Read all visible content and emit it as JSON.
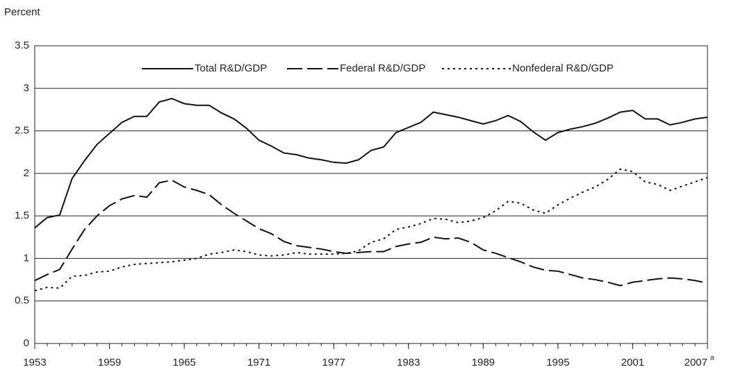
{
  "chart_data": {
    "type": "line",
    "y_axis_label": "Percent",
    "x_tick_note": "a",
    "x": [
      1953,
      1954,
      1955,
      1956,
      1957,
      1958,
      1959,
      1960,
      1961,
      1962,
      1963,
      1964,
      1965,
      1966,
      1967,
      1968,
      1969,
      1970,
      1971,
      1972,
      1973,
      1974,
      1975,
      1976,
      1977,
      1978,
      1979,
      1980,
      1981,
      1982,
      1983,
      1984,
      1985,
      1986,
      1987,
      1988,
      1989,
      1990,
      1991,
      1992,
      1993,
      1994,
      1995,
      1996,
      1997,
      1998,
      1999,
      2000,
      2001,
      2002,
      2003,
      2004,
      2005,
      2006,
      2007
    ],
    "series": [
      {
        "name": "Total R&D/GDP",
        "color": "#111111",
        "style": "solid",
        "values": [
          1.36,
          1.48,
          1.51,
          1.94,
          2.15,
          2.34,
          2.47,
          2.6,
          2.67,
          2.67,
          2.84,
          2.88,
          2.82,
          2.8,
          2.8,
          2.71,
          2.64,
          2.53,
          2.39,
          2.32,
          2.24,
          2.22,
          2.18,
          2.16,
          2.13,
          2.12,
          2.16,
          2.27,
          2.31,
          2.48,
          2.54,
          2.6,
          2.72,
          2.69,
          2.66,
          2.62,
          2.58,
          2.62,
          2.68,
          2.61,
          2.49,
          2.39,
          2.48,
          2.52,
          2.55,
          2.59,
          2.65,
          2.72,
          2.74,
          2.64,
          2.64,
          2.57,
          2.6,
          2.64,
          2.66
        ]
      },
      {
        "name": "Federal R&D/GDP",
        "color": "#111111",
        "style": "dashed",
        "values": [
          0.74,
          0.81,
          0.87,
          1.11,
          1.34,
          1.5,
          1.62,
          1.7,
          1.74,
          1.72,
          1.89,
          1.92,
          1.84,
          1.8,
          1.75,
          1.63,
          1.53,
          1.44,
          1.35,
          1.29,
          1.2,
          1.15,
          1.13,
          1.11,
          1.08,
          1.06,
          1.07,
          1.08,
          1.08,
          1.14,
          1.17,
          1.19,
          1.25,
          1.23,
          1.24,
          1.19,
          1.1,
          1.06,
          1.01,
          0.96,
          0.9,
          0.86,
          0.85,
          0.81,
          0.77,
          0.75,
          0.72,
          0.68,
          0.72,
          0.74,
          0.76,
          0.77,
          0.76,
          0.74,
          0.71
        ]
      },
      {
        "name": "Nonfederal R&D/GDP",
        "color": "#111111",
        "style": "dotted",
        "values": [
          0.62,
          0.66,
          0.65,
          0.79,
          0.8,
          0.84,
          0.85,
          0.9,
          0.93,
          0.94,
          0.95,
          0.96,
          0.98,
          1.0,
          1.05,
          1.07,
          1.1,
          1.08,
          1.04,
          1.03,
          1.04,
          1.07,
          1.05,
          1.05,
          1.05,
          1.06,
          1.09,
          1.19,
          1.23,
          1.34,
          1.37,
          1.41,
          1.47,
          1.46,
          1.42,
          1.44,
          1.48,
          1.56,
          1.67,
          1.65,
          1.57,
          1.53,
          1.63,
          1.71,
          1.78,
          1.84,
          1.93,
          2.05,
          2.02,
          1.9,
          1.87,
          1.8,
          1.85,
          1.9,
          1.95
        ]
      }
    ],
    "xlim": [
      1953,
      2007
    ],
    "xticks": [
      1953,
      1959,
      1965,
      1971,
      1977,
      1983,
      1989,
      1995,
      2001,
      2007
    ],
    "ylim": [
      0,
      3.5
    ],
    "yticks": [
      0,
      0.5,
      1,
      1.5,
      2,
      2.5,
      3,
      3.5
    ],
    "grid": true,
    "legend": "top"
  }
}
